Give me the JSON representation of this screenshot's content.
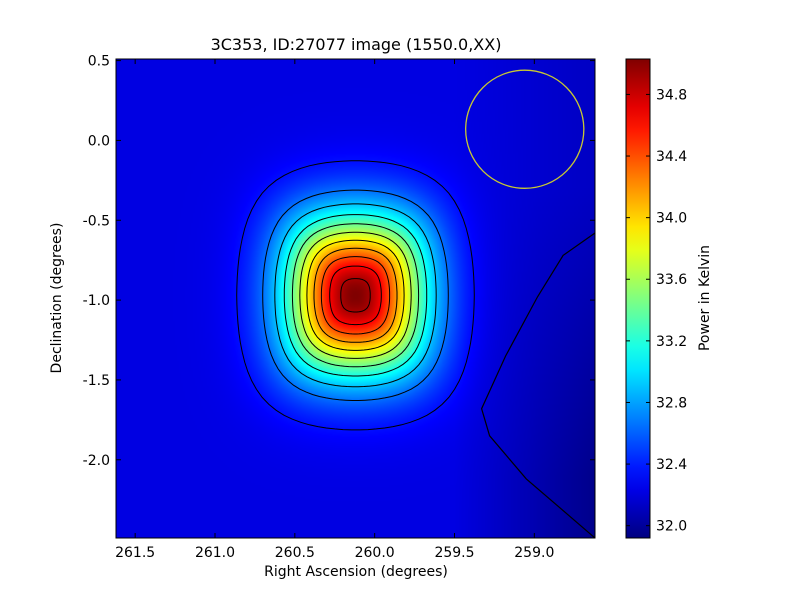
{
  "chart_data": {
    "type": "heatmap",
    "title": "3C353, ID:27077 image (1550.0,XX)",
    "xlabel": "Right Ascension (degrees)",
    "ylabel": "Declination (degrees)",
    "xlim": [
      261.62,
      258.62
    ],
    "ylim": [
      -2.49,
      0.51
    ],
    "x_ticks": [
      {
        "value": 261.5,
        "label": "261.5"
      },
      {
        "value": 261.0,
        "label": "261.0"
      },
      {
        "value": 260.5,
        "label": "260.5"
      },
      {
        "value": 260.0,
        "label": "260.0"
      },
      {
        "value": 259.5,
        "label": "259.5"
      },
      {
        "value": 259.0,
        "label": "259.0"
      }
    ],
    "y_ticks": [
      {
        "value": 0.5,
        "label": "0.5"
      },
      {
        "value": 0.0,
        "label": "0.0"
      },
      {
        "value": -0.5,
        "label": "-0.5"
      },
      {
        "value": -1.0,
        "label": "-1.0"
      },
      {
        "value": -1.5,
        "label": "-1.5"
      },
      {
        "value": -2.0,
        "label": "-2.0"
      }
    ],
    "colormap": "jet",
    "colorbar": {
      "label": "Power in Kelvin",
      "min": 31.92,
      "max": 35.03,
      "ticks": [
        {
          "value": 32.0,
          "label": "32.0"
        },
        {
          "value": 32.4,
          "label": "32.4"
        },
        {
          "value": 32.8,
          "label": "32.8"
        },
        {
          "value": 33.2,
          "label": "33.2"
        },
        {
          "value": 33.6,
          "label": "33.6"
        },
        {
          "value": 34.0,
          "label": "34.0"
        },
        {
          "value": 34.4,
          "label": "34.4"
        },
        {
          "value": 34.8,
          "label": "34.8"
        }
      ]
    },
    "source": {
      "ra": 260.12,
      "dec": -0.97,
      "peak": 35.03,
      "sigma_ra": 0.3,
      "sigma_dec": 0.34
    },
    "background": {
      "base": 32.22,
      "east_min": 31.95
    },
    "contour_levels": [
      32.35,
      32.65,
      32.9,
      33.15,
      33.4,
      33.65,
      33.9,
      34.15,
      34.4,
      34.65,
      34.9
    ],
    "low_contour": [
      {
        "ra": 258.62,
        "dec": -0.58
      },
      {
        "ra": 258.82,
        "dec": -0.72
      },
      {
        "ra": 258.98,
        "dec": -0.98
      },
      {
        "ra": 259.18,
        "dec": -1.35
      },
      {
        "ra": 259.33,
        "dec": -1.68
      },
      {
        "ra": 259.28,
        "dec": -1.85
      },
      {
        "ra": 259.05,
        "dec": -2.12
      },
      {
        "ra": 258.62,
        "dec": -2.49
      }
    ],
    "beam": {
      "ra": 259.06,
      "dec": 0.07,
      "radius_deg": 0.37,
      "color": "#c8c832"
    },
    "grid": false,
    "legend": "none"
  }
}
